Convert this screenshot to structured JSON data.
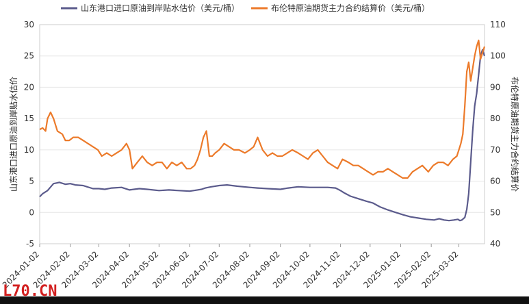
{
  "watermark": "L70.CN",
  "colors": {
    "series1": "#5b5b8c",
    "series2": "#ec7a2a",
    "grid": "#e6e6e6",
    "axis": "#999999",
    "watermark": "#d21f1f"
  },
  "chart_data": {
    "type": "line",
    "title": "",
    "legend_position": "top",
    "grid": true,
    "xlabel": "",
    "ylabel_left": "山东港口进口原油到岸贴水估价",
    "ylabel_right": "布伦特原油期货主力合约结算价",
    "ylim_left": [
      -5,
      30
    ],
    "ylim_right": [
      40,
      110
    ],
    "yticks_left": [
      -5,
      0,
      5,
      10,
      15,
      20,
      25,
      30
    ],
    "yticks_right": [
      40,
      50,
      60,
      70,
      80,
      90,
      100,
      110
    ],
    "x_range": [
      "2024-01-02",
      "2025-03-28"
    ],
    "xticks": [
      "2024-01-02",
      "2024-02-02",
      "2024-03-02",
      "2024-04-02",
      "2024-05-02",
      "2024-06-02",
      "2024-07-02",
      "2024-08-02",
      "2024-09-02",
      "2024-10-02",
      "2024-11-02",
      "2024-12-02",
      "2025-01-02",
      "2025-02-02",
      "2025-03-02"
    ],
    "series": [
      {
        "name": "山东港口进口原油到岸贴水估价（美元/桶）",
        "axis": "left",
        "x": [
          "2024-01-02",
          "2024-01-05",
          "2024-01-10",
          "2024-01-16",
          "2024-01-22",
          "2024-01-28",
          "2024-02-02",
          "2024-02-07",
          "2024-02-15",
          "2024-02-25",
          "2024-03-02",
          "2024-03-08",
          "2024-03-15",
          "2024-03-25",
          "2024-04-02",
          "2024-04-12",
          "2024-04-20",
          "2024-05-02",
          "2024-05-12",
          "2024-05-22",
          "2024-06-02",
          "2024-06-10",
          "2024-06-14",
          "2024-06-18",
          "2024-06-24",
          "2024-07-02",
          "2024-07-10",
          "2024-07-20",
          "2024-08-02",
          "2024-08-10",
          "2024-08-20",
          "2024-09-02",
          "2024-09-10",
          "2024-09-20",
          "2024-10-02",
          "2024-10-10",
          "2024-10-20",
          "2024-10-28",
          "2024-11-02",
          "2024-11-06",
          "2024-11-12",
          "2024-11-20",
          "2024-11-28",
          "2024-12-05",
          "2024-12-12",
          "2024-12-20",
          "2024-12-28",
          "2025-01-05",
          "2025-01-12",
          "2025-01-20",
          "2025-01-28",
          "2025-02-05",
          "2025-02-10",
          "2025-02-15",
          "2025-02-20",
          "2025-02-25",
          "2025-03-01",
          "2025-03-03",
          "2025-03-05",
          "2025-03-08",
          "2025-03-10",
          "2025-03-12",
          "2025-03-14",
          "2025-03-16",
          "2025-03-18",
          "2025-03-20",
          "2025-03-22",
          "2025-03-24",
          "2025-03-26",
          "2025-03-28"
        ],
        "values": [
          2.5,
          3,
          3.5,
          4.6,
          4.8,
          4.5,
          4.6,
          4.4,
          4.3,
          3.8,
          3.8,
          3.7,
          3.9,
          4,
          3.6,
          3.8,
          3.7,
          3.5,
          3.6,
          3.5,
          3.4,
          3.6,
          3.7,
          3.9,
          4.1,
          4.3,
          4.4,
          4.2,
          4,
          3.9,
          3.8,
          3.7,
          3.9,
          4.1,
          4,
          4,
          4,
          3.9,
          3.5,
          3.1,
          2.6,
          2.2,
          1.8,
          1.5,
          0.9,
          0.4,
          0,
          -0.4,
          -0.7,
          -0.9,
          -1.1,
          -1.2,
          -1.0,
          -1.2,
          -1.3,
          -1.2,
          -1.1,
          -1.3,
          -1.2,
          -0.8,
          0.5,
          3,
          8,
          13,
          17,
          19,
          22,
          25,
          26,
          25
        ]
      },
      {
        "name": "布伦特原油期货主力合约结算价（美元/桶）",
        "axis": "right",
        "x": [
          "2024-01-02",
          "2024-01-05",
          "2024-01-08",
          "2024-01-10",
          "2024-01-13",
          "2024-01-16",
          "2024-01-20",
          "2024-01-25",
          "2024-01-28",
          "2024-02-01",
          "2024-02-05",
          "2024-02-10",
          "2024-02-15",
          "2024-02-20",
          "2024-02-25",
          "2024-03-01",
          "2024-03-05",
          "2024-03-10",
          "2024-03-15",
          "2024-03-20",
          "2024-03-25",
          "2024-03-30",
          "2024-04-02",
          "2024-04-05",
          "2024-04-10",
          "2024-04-15",
          "2024-04-20",
          "2024-04-25",
          "2024-04-30",
          "2024-05-05",
          "2024-05-10",
          "2024-05-15",
          "2024-05-20",
          "2024-05-25",
          "2024-05-30",
          "2024-06-03",
          "2024-06-07",
          "2024-06-10",
          "2024-06-13",
          "2024-06-16",
          "2024-06-19",
          "2024-06-22",
          "2024-06-25",
          "2024-06-28",
          "2024-07-02",
          "2024-07-07",
          "2024-07-12",
          "2024-07-17",
          "2024-07-22",
          "2024-07-28",
          "2024-08-02",
          "2024-08-06",
          "2024-08-10",
          "2024-08-15",
          "2024-08-20",
          "2024-08-25",
          "2024-08-30",
          "2024-09-04",
          "2024-09-09",
          "2024-09-14",
          "2024-09-20",
          "2024-09-25",
          "2024-09-30",
          "2024-10-05",
          "2024-10-10",
          "2024-10-15",
          "2024-10-20",
          "2024-10-25",
          "2024-10-30",
          "2024-11-04",
          "2024-11-10",
          "2024-11-15",
          "2024-11-20",
          "2024-11-25",
          "2024-11-30",
          "2024-12-05",
          "2024-12-10",
          "2024-12-15",
          "2024-12-20",
          "2024-12-25",
          "2024-12-30",
          "2025-01-04",
          "2025-01-09",
          "2025-01-14",
          "2025-01-19",
          "2025-01-24",
          "2025-01-30",
          "2025-02-04",
          "2025-02-09",
          "2025-02-14",
          "2025-02-19",
          "2025-02-24",
          "2025-02-28",
          "2025-03-02",
          "2025-03-04",
          "2025-03-06",
          "2025-03-08",
          "2025-03-10",
          "2025-03-12",
          "2025-03-14",
          "2025-03-16",
          "2025-03-18",
          "2025-03-20",
          "2025-03-22",
          "2025-03-24",
          "2025-03-26",
          "2025-03-28"
        ],
        "values": [
          76.5,
          77,
          76,
          80,
          82,
          80,
          76,
          75,
          73,
          73,
          74,
          74,
          73,
          72,
          71,
          70,
          68,
          69,
          68,
          69,
          70,
          72,
          70,
          64,
          66,
          68,
          66,
          65,
          66,
          66,
          64,
          66,
          65,
          66,
          64,
          64,
          65,
          67,
          70,
          74,
          76,
          68,
          68,
          69,
          70,
          72,
          71,
          70,
          70,
          69,
          70,
          71,
          74,
          70,
          68,
          69,
          68,
          68,
          69,
          70,
          69,
          68,
          67,
          69,
          70,
          68,
          66,
          65,
          64,
          67,
          66,
          65,
          65,
          64,
          63,
          62,
          63,
          63,
          64,
          63,
          62,
          61,
          61,
          63,
          64,
          65,
          63,
          65,
          66,
          66,
          65,
          67,
          68,
          70,
          72,
          75,
          84,
          95,
          98,
          92,
          96,
          100,
          103,
          105,
          99,
          101,
          103
        ]
      }
    ]
  }
}
